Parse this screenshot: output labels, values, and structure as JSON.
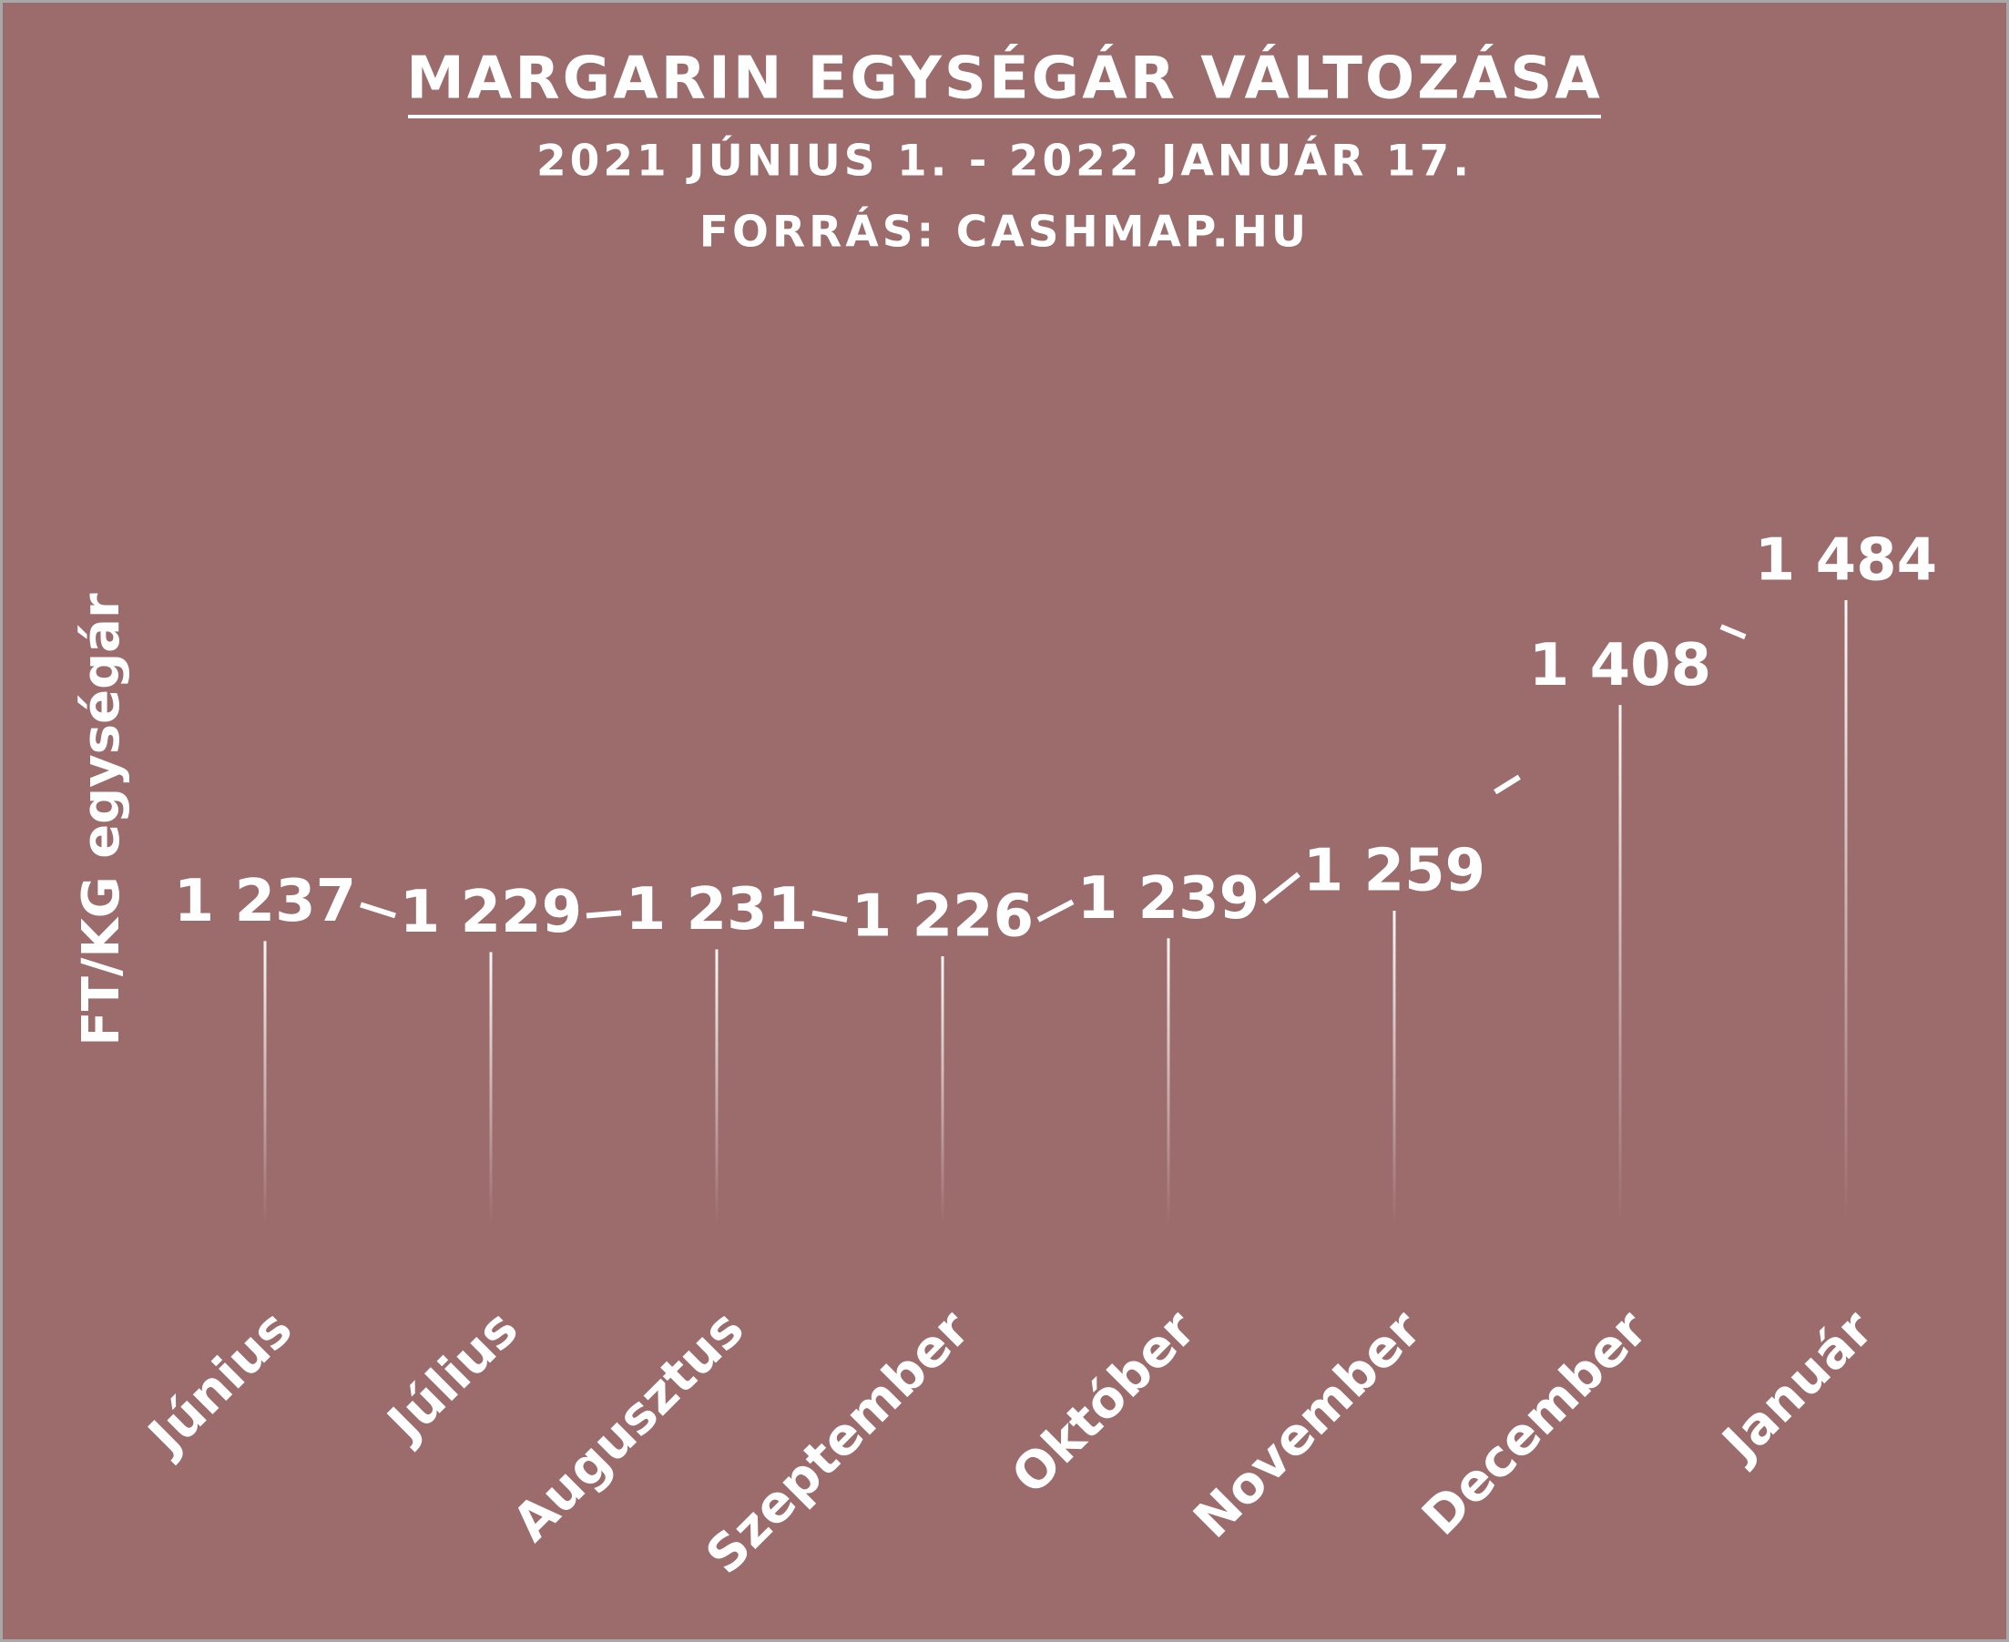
{
  "chart_data": {
    "type": "line",
    "title": "MARGARIN EGYSÉGÁR VÁLTOZÁSA",
    "subtitle": "2021 JÚNIUS 1. - 2022 JANUÁR 17.",
    "source": "FORRÁS: CASHMAP.HU",
    "y_label": "FT/KG egységár",
    "categories": [
      "Június",
      "Július",
      "Augusztus",
      "Szeptember",
      "Október",
      "November",
      "December",
      "Január"
    ],
    "values": [
      1237,
      1229,
      1231,
      1226,
      1239,
      1259,
      1408,
      1484
    ],
    "value_labels": [
      "1 237",
      "1 229",
      "1 231",
      "1 226",
      "1 239",
      "1 259",
      "1 408",
      "1 484"
    ],
    "color": "#ffffff"
  }
}
